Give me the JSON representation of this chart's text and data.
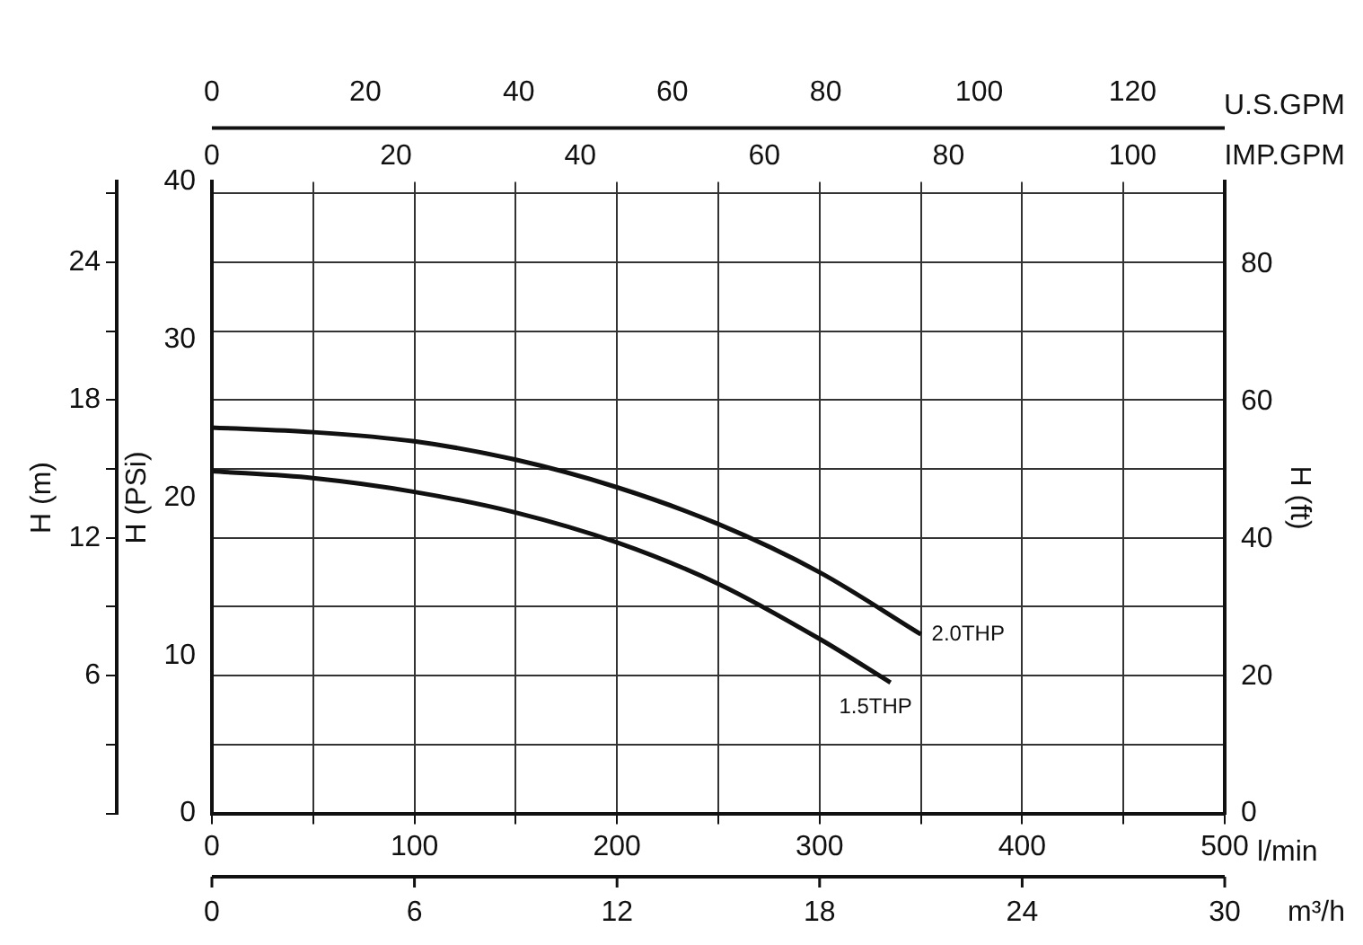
{
  "chart_data": {
    "type": "line",
    "series": [
      {
        "name": "2.0THP",
        "color": "#111111",
        "x": [
          0,
          50,
          100,
          150,
          200,
          250,
          300,
          350
        ],
        "values": [
          16.8,
          16.6,
          16.2,
          15.4,
          14.2,
          12.6,
          10.5,
          7.8
        ]
      },
      {
        "name": "1.5THP",
        "color": "#111111",
        "x": [
          0,
          50,
          100,
          150,
          200,
          250,
          300,
          335
        ],
        "values": [
          14.9,
          14.6,
          14.0,
          13.1,
          11.8,
          10.0,
          7.6,
          5.7
        ]
      }
    ],
    "xlabel": "l/min",
    "xlim": [
      0,
      500
    ],
    "xticks": [
      0,
      {
        "value": 50,
        "label": null
      },
      100,
      {
        "value": 150,
        "label": null
      },
      200,
      {
        "value": 250,
        "label": null
      },
      300,
      {
        "value": 350,
        "label": null
      },
      400,
      {
        "value": 450,
        "label": null
      },
      500
    ],
    "x2label": "U.S.GPM",
    "x2lim": [
      0,
      132
    ],
    "x2ticks": [
      0,
      20,
      40,
      60,
      80,
      100,
      120
    ],
    "ylabel": "H (m)",
    "ylim": [
      0,
      27.5
    ],
    "yticks": [
      {
        "value": 0,
        "label": null
      },
      {
        "value": 3,
        "label": null
      },
      6,
      {
        "value": 9,
        "label": null
      },
      12,
      {
        "value": 15,
        "label": null
      },
      18,
      {
        "value": 21,
        "label": null
      },
      24,
      {
        "value": 27,
        "label": null
      }
    ],
    "y2label": "H (ft)",
    "y2lim": [
      0,
      92
    ],
    "y2ticks": [
      0,
      20,
      40,
      60,
      80
    ],
    "y3label": "H (PSi)",
    "y3lim": [
      0,
      40
    ],
    "y3ticks": [
      0,
      10,
      20,
      30,
      40
    ],
    "annotations": [
      "m³/h",
      "0",
      "6",
      "12",
      "18",
      "24",
      "30",
      "IMP.GPM",
      "0",
      "20",
      "40",
      "60",
      "80",
      "100"
    ],
    "grid": true,
    "legend": false,
    "marker": "none",
    "line_style": "solid"
  }
}
